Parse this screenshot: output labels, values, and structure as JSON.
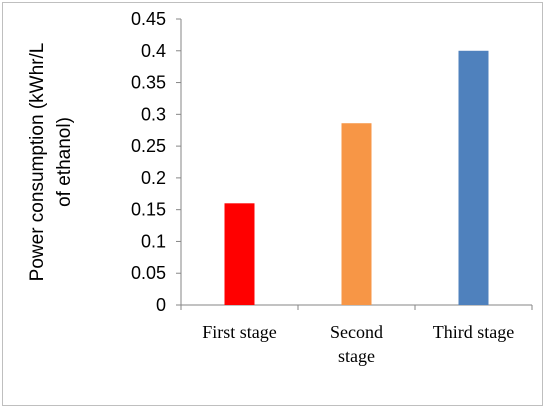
{
  "chart_data": {
    "type": "bar",
    "categories": [
      [
        "First stage"
      ],
      [
        "Second",
        "stage"
      ],
      [
        "Third stage"
      ]
    ],
    "values": [
      0.16,
      0.286,
      0.4
    ],
    "colors": [
      "#ff0000",
      "#f79646",
      "#4f81bd"
    ],
    "title": "",
    "xlabel": "",
    "ylabel": [
      "Power consumption (kWhr/L",
      "of ethanol)"
    ],
    "ylim": [
      0,
      0.45
    ],
    "yticks": [
      "0",
      "0.05",
      "0.1",
      "0.15",
      "0.2",
      "0.25",
      "0.3",
      "0.35",
      "0.4",
      "0.45"
    ],
    "grid": false,
    "legend": "none"
  }
}
